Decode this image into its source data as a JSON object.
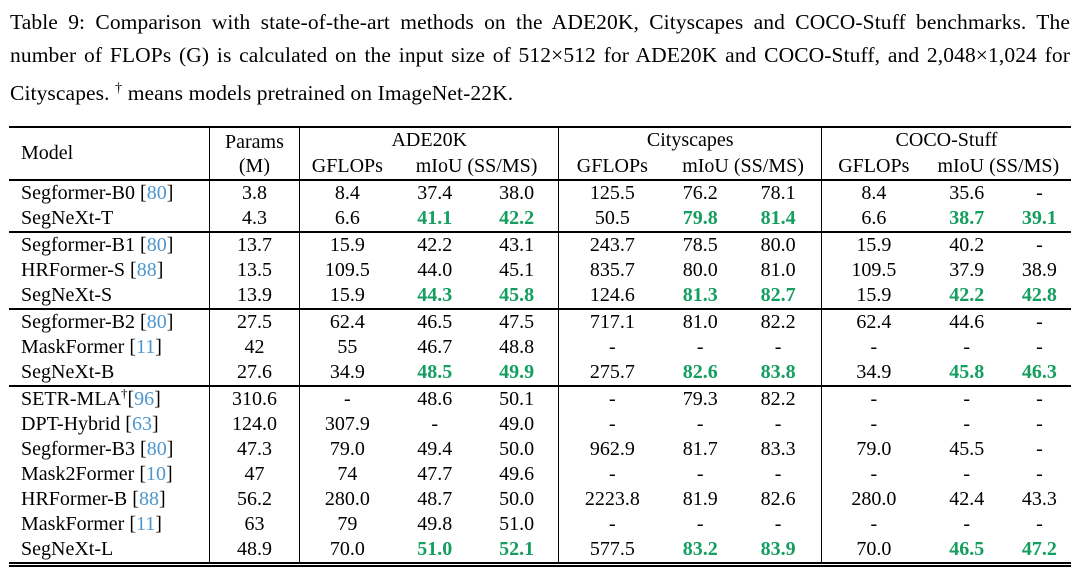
{
  "caption": {
    "before_dagger": "Table 9: Comparison with state-of-the-art methods on the ADE20K, Cityscapes and COCO-Stuff benchmarks. The number of FLOPs (G) is calculated on the input size of 512×512 for ADE20K and COCO-Stuff, and 2,048×1,024 for Cityscapes. ",
    "dagger": "†",
    "after_dagger": " means models pretrained on ImageNet-22K."
  },
  "colors": {
    "highlight_green": "#149e5f",
    "citation_blue": "#4d96cd"
  },
  "table": {
    "header": {
      "model": "Model",
      "params_line1": "Params",
      "params_line2": "(M)",
      "benchmarks": [
        "ADE20K",
        "Cityscapes",
        "COCO-Stuff"
      ],
      "gflops": "GFLOPs",
      "miou": "mIoU (SS/MS)"
    },
    "groups": [
      {
        "rows": [
          {
            "model": {
              "name": "Segformer-B0",
              "sup": "",
              "gap": " ",
              "cite": "80"
            },
            "values": [
              "3.8",
              "8.4",
              "37.4",
              "38.0",
              "125.5",
              "76.2",
              "78.1",
              "8.4",
              "35.6",
              "-"
            ],
            "green": []
          },
          {
            "model": {
              "name": "SegNeXt-T",
              "sup": "",
              "gap": "",
              "cite": ""
            },
            "values": [
              "4.3",
              "6.6",
              "41.1",
              "42.2",
              "50.5",
              "79.8",
              "81.4",
              "6.6",
              "38.7",
              "39.1"
            ],
            "green": [
              2,
              3,
              5,
              6,
              8,
              9
            ]
          }
        ]
      },
      {
        "rows": [
          {
            "model": {
              "name": "Segformer-B1",
              "sup": "",
              "gap": " ",
              "cite": "80"
            },
            "values": [
              "13.7",
              "15.9",
              "42.2",
              "43.1",
              "243.7",
              "78.5",
              "80.0",
              "15.9",
              "40.2",
              "-"
            ],
            "green": []
          },
          {
            "model": {
              "name": "HRFormer-S",
              "sup": "",
              "gap": " ",
              "cite": "88"
            },
            "values": [
              "13.5",
              "109.5",
              "44.0",
              "45.1",
              "835.7",
              "80.0",
              "81.0",
              "109.5",
              "37.9",
              "38.9"
            ],
            "green": []
          },
          {
            "model": {
              "name": "SegNeXt-S",
              "sup": "",
              "gap": "",
              "cite": ""
            },
            "values": [
              "13.9",
              "15.9",
              "44.3",
              "45.8",
              "124.6",
              "81.3",
              "82.7",
              "15.9",
              "42.2",
              "42.8"
            ],
            "green": [
              2,
              3,
              5,
              6,
              8,
              9
            ]
          }
        ]
      },
      {
        "rows": [
          {
            "model": {
              "name": "Segformer-B2",
              "sup": "",
              "gap": " ",
              "cite": "80"
            },
            "values": [
              "27.5",
              "62.4",
              "46.5",
              "47.5",
              "717.1",
              "81.0",
              "82.2",
              "62.4",
              "44.6",
              "-"
            ],
            "green": []
          },
          {
            "model": {
              "name": "MaskFormer",
              "sup": "",
              "gap": " ",
              "cite": "11"
            },
            "values": [
              "42",
              "55",
              "46.7",
              "48.8",
              "-",
              "-",
              "-",
              "-",
              "-",
              "-"
            ],
            "green": []
          },
          {
            "model": {
              "name": "SegNeXt-B",
              "sup": "",
              "gap": "",
              "cite": ""
            },
            "values": [
              "27.6",
              "34.9",
              "48.5",
              "49.9",
              "275.7",
              "82.6",
              "83.8",
              "34.9",
              "45.8",
              "46.3"
            ],
            "green": [
              2,
              3,
              5,
              6,
              8,
              9
            ]
          }
        ]
      },
      {
        "rows": [
          {
            "model": {
              "name": "SETR-MLA",
              "sup": "†",
              "gap": "",
              "cite": "96"
            },
            "values": [
              "310.6",
              "-",
              "48.6",
              "50.1",
              "-",
              "79.3",
              "82.2",
              "-",
              "-",
              "-"
            ],
            "green": []
          },
          {
            "model": {
              "name": "DPT-Hybrid",
              "sup": "",
              "gap": " ",
              "cite": "63"
            },
            "values": [
              "124.0",
              "307.9",
              "-",
              "49.0",
              "-",
              "-",
              "-",
              "-",
              "-",
              "-"
            ],
            "green": []
          },
          {
            "model": {
              "name": "Segformer-B3",
              "sup": "",
              "gap": " ",
              "cite": "80"
            },
            "values": [
              "47.3",
              "79.0",
              "49.4",
              "50.0",
              "962.9",
              "81.7",
              "83.3",
              "79.0",
              "45.5",
              "-"
            ],
            "green": []
          },
          {
            "model": {
              "name": "Mask2Former",
              "sup": "",
              "gap": " ",
              "cite": "10"
            },
            "values": [
              "47",
              "74",
              "47.7",
              "49.6",
              "-",
              "-",
              "-",
              "-",
              "-",
              "-"
            ],
            "green": []
          },
          {
            "model": {
              "name": "HRFormer-B",
              "sup": "",
              "gap": " ",
              "cite": "88"
            },
            "values": [
              "56.2",
              "280.0",
              "48.7",
              "50.0",
              "2223.8",
              "81.9",
              "82.6",
              "280.0",
              "42.4",
              "43.3"
            ],
            "green": []
          },
          {
            "model": {
              "name": "MaskFormer",
              "sup": "",
              "gap": " ",
              "cite": "11"
            },
            "values": [
              "63",
              "79",
              "49.8",
              "51.0",
              "-",
              "-",
              "-",
              "-",
              "-",
              "-"
            ],
            "green": []
          },
          {
            "model": {
              "name": "SegNeXt-L",
              "sup": "",
              "gap": "",
              "cite": ""
            },
            "values": [
              "48.9",
              "70.0",
              "51.0",
              "52.1",
              "577.5",
              "83.2",
              "83.9",
              "70.0",
              "46.5",
              "47.2"
            ],
            "green": [
              2,
              3,
              5,
              6,
              8,
              9
            ]
          }
        ]
      }
    ]
  }
}
